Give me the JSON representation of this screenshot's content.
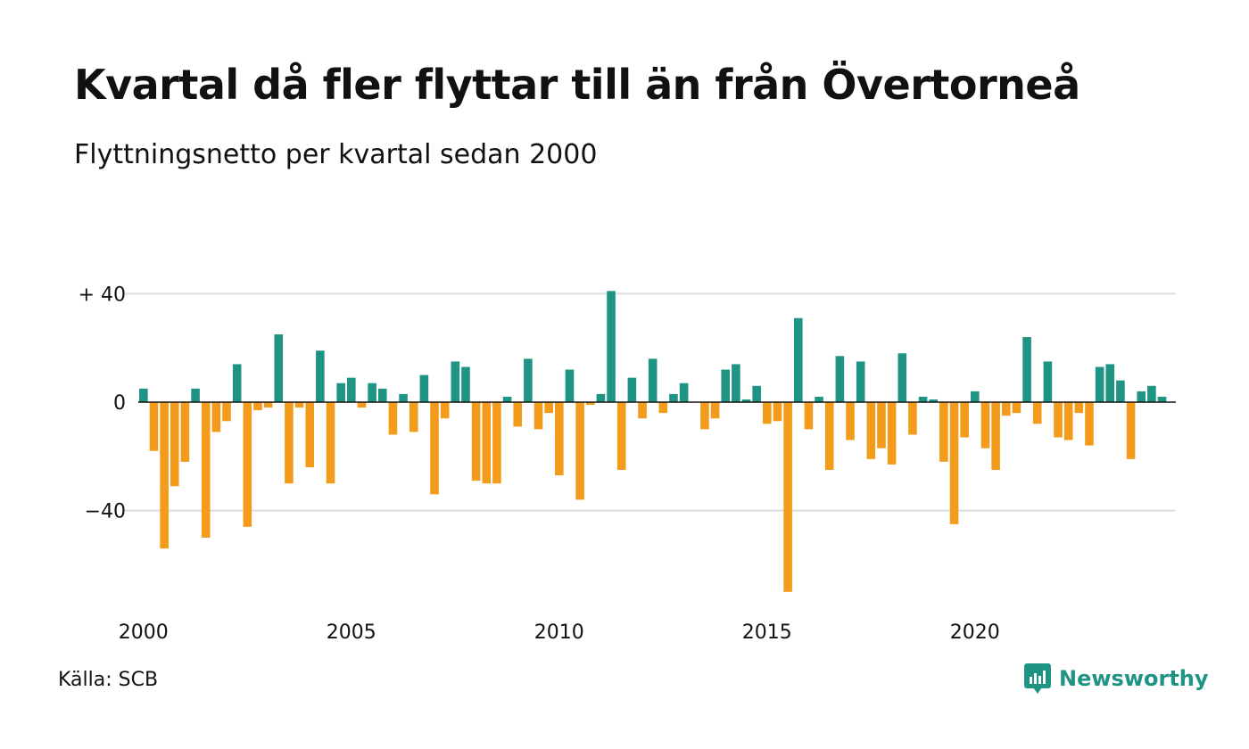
{
  "title": "Kvartal då fler flyttar till än från Övertorneå",
  "subtitle": "Flyttningsnetto per kvartal sedan 2000",
  "source": "Källa: SCB",
  "brand": "Newsworthy",
  "colors": {
    "positive": "#1f9485",
    "negative": "#f39c1c",
    "grid": "#dddddd",
    "zero": "#111111"
  },
  "chart_data": {
    "type": "bar",
    "ylim": [
      -72,
      42
    ],
    "y_ticks": [
      {
        "value": 40,
        "label": "+ 40"
      },
      {
        "value": 0,
        "label": "0"
      },
      {
        "value": -40,
        "label": "−40"
      }
    ],
    "x_ticks": [
      "2000",
      "2005",
      "2010",
      "2015",
      "2020"
    ],
    "grid": true,
    "start": "2000 Q1",
    "values": [
      5,
      -18,
      -54,
      -31,
      -22,
      5,
      -50,
      -11,
      -7,
      14,
      -46,
      -3,
      -2,
      25,
      -30,
      -2,
      -24,
      19,
      -30,
      7,
      9,
      -2,
      7,
      5,
      -12,
      3,
      -11,
      10,
      -34,
      -6,
      15,
      13,
      -29,
      -30,
      -30,
      2,
      -9,
      16,
      -10,
      -4,
      -27,
      12,
      -36,
      -1,
      3,
      41,
      -25,
      9,
      -6,
      16,
      -4,
      3,
      7,
      0,
      -10,
      -6,
      12,
      14,
      1,
      6,
      -8,
      -7,
      -70,
      31,
      -10,
      2,
      -25,
      17,
      -14,
      15,
      -21,
      -17,
      -23,
      18,
      -12,
      2,
      1,
      -22,
      -45,
      -13,
      4,
      -17,
      -25,
      -5,
      -4,
      24,
      -8,
      15,
      -13,
      -14,
      -4,
      -16,
      13,
      14,
      8,
      -21,
      4,
      6,
      2
    ]
  }
}
